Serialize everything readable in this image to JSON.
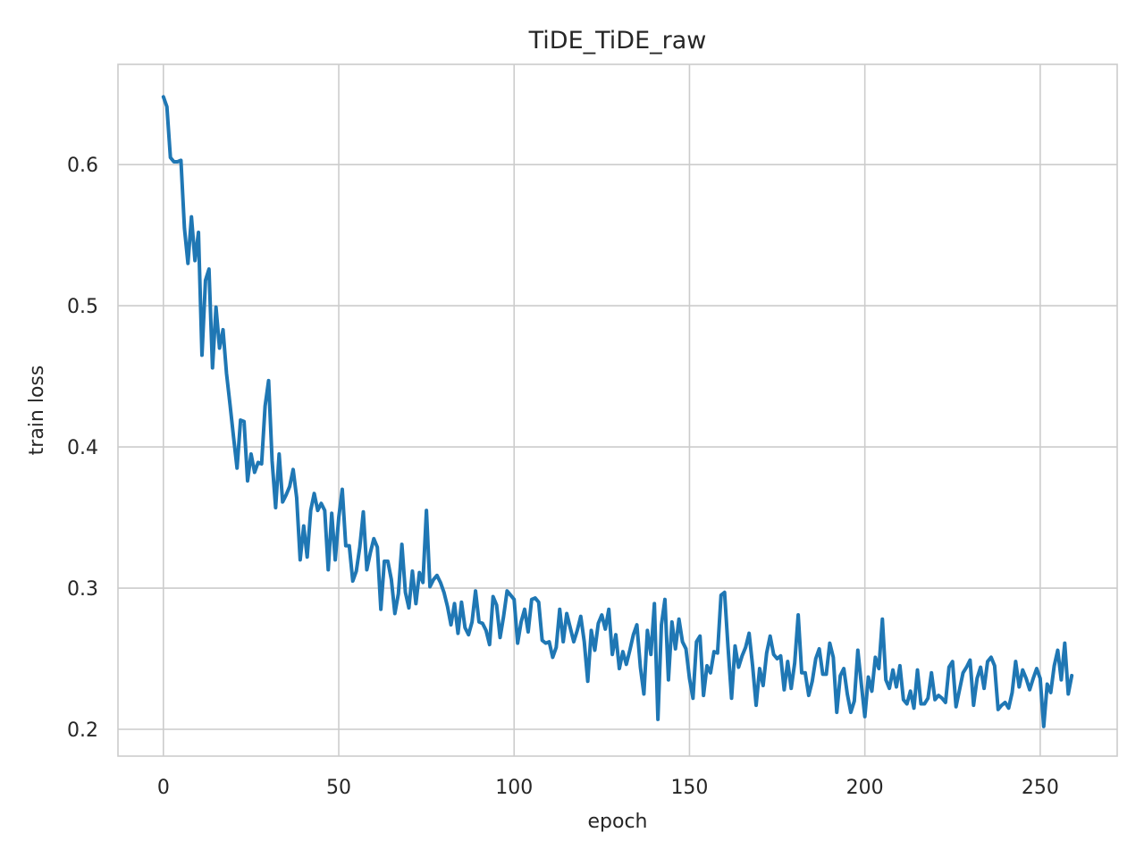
{
  "chart_data": {
    "type": "line",
    "title": "TiDE_TiDE_raw",
    "x_label": "epoch",
    "y_label": "train loss",
    "color": "#1f77b4",
    "grid": true,
    "xlim": [
      -12.95,
      271.95
    ],
    "xticks": [
      0,
      50,
      100,
      150,
      200,
      250
    ],
    "ylim": [
      0.181,
      0.671
    ],
    "yticks": [
      0.2,
      0.3,
      0.4,
      0.5,
      0.6
    ],
    "x": [
      0,
      1,
      2,
      3,
      4,
      5,
      6,
      7,
      8,
      9,
      10,
      11,
      12,
      13,
      14,
      15,
      16,
      17,
      18,
      19,
      20,
      21,
      22,
      23,
      24,
      25,
      26,
      27,
      28,
      29,
      30,
      31,
      32,
      33,
      34,
      35,
      36,
      37,
      38,
      39,
      40,
      41,
      42,
      43,
      44,
      45,
      46,
      47,
      48,
      49,
      50,
      51,
      52,
      53,
      54,
      55,
      56,
      57,
      58,
      59,
      60,
      61,
      62,
      63,
      64,
      65,
      66,
      67,
      68,
      69,
      70,
      71,
      72,
      73,
      74,
      75,
      76,
      77,
      78,
      79,
      80,
      81,
      82,
      83,
      84,
      85,
      86,
      87,
      88,
      89,
      90,
      91,
      92,
      93,
      94,
      95,
      96,
      97,
      98,
      99,
      100,
      101,
      102,
      103,
      104,
      105,
      106,
      107,
      108,
      109,
      110,
      111,
      112,
      113,
      114,
      115,
      116,
      117,
      118,
      119,
      120,
      121,
      122,
      123,
      124,
      125,
      126,
      127,
      128,
      129,
      130,
      131,
      132,
      133,
      134,
      135,
      136,
      137,
      138,
      139,
      140,
      141,
      142,
      143,
      144,
      145,
      146,
      147,
      148,
      149,
      150,
      151,
      152,
      153,
      154,
      155,
      156,
      157,
      158,
      159,
      160,
      161,
      162,
      163,
      164,
      165,
      166,
      167,
      168,
      169,
      170,
      171,
      172,
      173,
      174,
      175,
      176,
      177,
      178,
      179,
      180,
      181,
      182,
      183,
      184,
      185,
      186,
      187,
      188,
      189,
      190,
      191,
      192,
      193,
      194,
      195,
      196,
      197,
      198,
      199,
      200,
      201,
      202,
      203,
      204,
      205,
      206,
      207,
      208,
      209,
      210,
      211,
      212,
      213,
      214,
      215,
      216,
      217,
      218,
      219,
      220,
      221,
      222,
      223,
      224,
      225,
      226,
      227,
      228,
      229,
      230,
      231,
      232,
      233,
      234,
      235,
      236,
      237,
      238,
      239,
      240,
      241,
      242,
      243,
      244,
      245,
      246,
      247,
      248,
      249,
      250,
      251,
      252,
      253,
      254,
      255,
      256,
      257,
      258,
      259
    ],
    "values": [
      0.648,
      0.641,
      0.605,
      0.602,
      0.602,
      0.603,
      0.555,
      0.53,
      0.563,
      0.532,
      0.552,
      0.465,
      0.518,
      0.526,
      0.456,
      0.499,
      0.47,
      0.483,
      0.452,
      0.43,
      0.407,
      0.385,
      0.419,
      0.418,
      0.376,
      0.395,
      0.382,
      0.389,
      0.388,
      0.429,
      0.447,
      0.39,
      0.357,
      0.395,
      0.361,
      0.366,
      0.372,
      0.384,
      0.364,
      0.32,
      0.344,
      0.322,
      0.355,
      0.367,
      0.355,
      0.36,
      0.355,
      0.313,
      0.353,
      0.32,
      0.35,
      0.37,
      0.33,
      0.33,
      0.305,
      0.312,
      0.329,
      0.354,
      0.313,
      0.325,
      0.335,
      0.329,
      0.285,
      0.319,
      0.319,
      0.306,
      0.282,
      0.296,
      0.331,
      0.297,
      0.286,
      0.312,
      0.289,
      0.311,
      0.304,
      0.355,
      0.301,
      0.306,
      0.309,
      0.304,
      0.297,
      0.287,
      0.274,
      0.289,
      0.268,
      0.29,
      0.272,
      0.267,
      0.276,
      0.298,
      0.276,
      0.275,
      0.27,
      0.26,
      0.294,
      0.288,
      0.265,
      0.28,
      0.298,
      0.295,
      0.292,
      0.261,
      0.276,
      0.285,
      0.269,
      0.292,
      0.293,
      0.29,
      0.263,
      0.261,
      0.262,
      0.251,
      0.258,
      0.285,
      0.262,
      0.282,
      0.272,
      0.262,
      0.27,
      0.28,
      0.262,
      0.234,
      0.27,
      0.256,
      0.275,
      0.281,
      0.271,
      0.285,
      0.253,
      0.267,
      0.243,
      0.255,
      0.246,
      0.256,
      0.267,
      0.274,
      0.244,
      0.225,
      0.27,
      0.253,
      0.289,
      0.207,
      0.274,
      0.292,
      0.235,
      0.276,
      0.257,
      0.278,
      0.262,
      0.257,
      0.236,
      0.222,
      0.262,
      0.266,
      0.224,
      0.245,
      0.24,
      0.255,
      0.254,
      0.295,
      0.297,
      0.258,
      0.222,
      0.259,
      0.244,
      0.252,
      0.258,
      0.268,
      0.245,
      0.217,
      0.243,
      0.231,
      0.254,
      0.266,
      0.253,
      0.25,
      0.252,
      0.228,
      0.248,
      0.229,
      0.247,
      0.281,
      0.24,
      0.24,
      0.224,
      0.234,
      0.25,
      0.257,
      0.239,
      0.239,
      0.261,
      0.251,
      0.212,
      0.238,
      0.243,
      0.225,
      0.212,
      0.22,
      0.256,
      0.232,
      0.209,
      0.237,
      0.227,
      0.251,
      0.243,
      0.278,
      0.235,
      0.229,
      0.242,
      0.23,
      0.245,
      0.221,
      0.218,
      0.227,
      0.215,
      0.242,
      0.218,
      0.218,
      0.222,
      0.24,
      0.221,
      0.224,
      0.222,
      0.219,
      0.244,
      0.248,
      0.216,
      0.228,
      0.24,
      0.244,
      0.249,
      0.217,
      0.236,
      0.244,
      0.229,
      0.248,
      0.251,
      0.245,
      0.214,
      0.217,
      0.219,
      0.215,
      0.226,
      0.248,
      0.23,
      0.242,
      0.236,
      0.228,
      0.236,
      0.243,
      0.236,
      0.202,
      0.232,
      0.226,
      0.245,
      0.256,
      0.235,
      0.261,
      0.225,
      0.238
    ]
  }
}
